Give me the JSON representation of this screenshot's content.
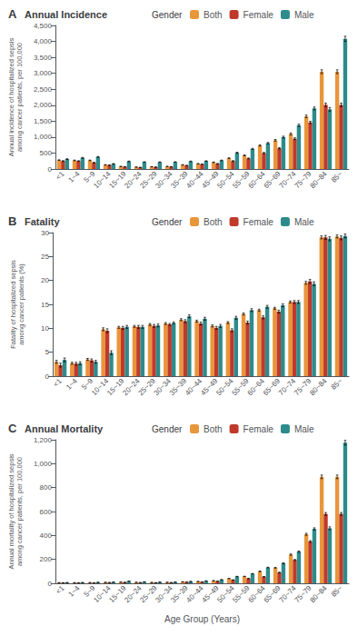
{
  "chart_data": [
    {
      "type": "bar",
      "panel_label": "A",
      "title": "Annual Incidence",
      "ylabel": "Annual incidence of hospitalized sepsis\namong cancer patients, per 100,000",
      "legend_title": "Gender",
      "legend": "upper left",
      "grid": false,
      "categories": [
        "<1",
        "1~4",
        "5~9",
        "10~14",
        "15~19",
        "20~24",
        "25~29",
        "30~34",
        "35~39",
        "40~44",
        "45~49",
        "50~54",
        "55~59",
        "60~64",
        "65~69",
        "70~74",
        "75~79",
        "80~84",
        "85~"
      ],
      "ylim": [
        0,
        4500
      ],
      "yticks": [
        0,
        500,
        1000,
        1500,
        2000,
        2500,
        3000,
        3500,
        4000,
        4500
      ],
      "series": [
        {
          "name": "Both",
          "color": "#E8963A",
          "values": [
            280,
            270,
            270,
            130,
            80,
            60,
            70,
            80,
            130,
            165,
            210,
            340,
            430,
            740,
            900,
            1100,
            1650,
            3050,
            3050
          ],
          "errors": [
            10,
            10,
            10,
            8,
            5,
            4,
            4,
            5,
            6,
            7,
            8,
            12,
            15,
            20,
            25,
            30,
            40,
            60,
            60
          ]
        },
        {
          "name": "Female",
          "color": "#C0392B",
          "values": [
            250,
            250,
            200,
            120,
            70,
            50,
            60,
            70,
            110,
            150,
            165,
            250,
            330,
            500,
            650,
            950,
            1460,
            2010,
            2010
          ],
          "errors": [
            12,
            10,
            10,
            9,
            5,
            4,
            4,
            5,
            6,
            7,
            8,
            12,
            14,
            18,
            22,
            28,
            35,
            55,
            55
          ]
        },
        {
          "name": "Male",
          "color": "#2E8B8B",
          "values": [
            310,
            350,
            380,
            160,
            240,
            220,
            215,
            220,
            240,
            250,
            270,
            510,
            630,
            810,
            1000,
            1370,
            1900,
            1870,
            4080
          ],
          "errors": [
            12,
            12,
            12,
            10,
            8,
            7,
            7,
            7,
            8,
            8,
            9,
            15,
            18,
            22,
            28,
            35,
            45,
            55,
            80
          ]
        }
      ]
    },
    {
      "type": "bar",
      "panel_label": "B",
      "title": "Fatality",
      "ylabel": "Fatality of hospitalized sepsis\namong cancer patients (%)",
      "legend_title": "Gender",
      "legend": "upper left",
      "grid": false,
      "categories": [
        "<1",
        "1~4",
        "5~9",
        "10~14",
        "15~19",
        "20~24",
        "25~29",
        "30~34",
        "35~39",
        "40~44",
        "45~49",
        "50~54",
        "55~59",
        "60~64",
        "65~69",
        "70~74",
        "75~79",
        "80~84",
        "85~"
      ],
      "ylim": [
        0,
        30
      ],
      "yticks": [
        0,
        5,
        10,
        15,
        20,
        25,
        30
      ],
      "series": [
        {
          "name": "Both",
          "color": "#E8963A",
          "values": [
            3.0,
            2.7,
            3.5,
            9.8,
            10.2,
            10.4,
            10.8,
            11.0,
            11.8,
            11.5,
            10.5,
            11.2,
            13.0,
            13.8,
            14.2,
            15.5,
            19.5,
            29.0,
            29.2
          ],
          "errors": [
            0.3,
            0.2,
            0.2,
            0.3,
            0.2,
            0.2,
            0.2,
            0.2,
            0.2,
            0.2,
            0.2,
            0.2,
            0.2,
            0.2,
            0.2,
            0.2,
            0.3,
            0.3,
            0.3
          ]
        },
        {
          "name": "Female",
          "color": "#C0392B",
          "values": [
            2.3,
            2.6,
            3.3,
            9.5,
            10.1,
            10.3,
            10.5,
            10.8,
            11.5,
            11.0,
            10.1,
            9.6,
            11.2,
            12.3,
            13.5,
            15.5,
            19.8,
            29.0,
            28.9
          ],
          "errors": [
            0.4,
            0.3,
            0.3,
            0.4,
            0.3,
            0.3,
            0.3,
            0.2,
            0.3,
            0.3,
            0.3,
            0.3,
            0.3,
            0.3,
            0.3,
            0.3,
            0.4,
            0.4,
            0.4
          ]
        },
        {
          "name": "Male",
          "color": "#2E8B8B",
          "values": [
            3.4,
            2.7,
            3.0,
            4.9,
            10.3,
            10.3,
            10.6,
            11.1,
            12.5,
            12.0,
            10.5,
            12.2,
            13.8,
            14.5,
            14.8,
            15.5,
            19.3,
            28.7,
            29.3
          ],
          "errors": [
            0.4,
            0.3,
            0.3,
            0.4,
            0.3,
            0.3,
            0.3,
            0.2,
            0.3,
            0.3,
            0.3,
            0.3,
            0.3,
            0.3,
            0.3,
            0.3,
            0.4,
            0.4,
            0.4
          ]
        }
      ]
    },
    {
      "type": "bar",
      "panel_label": "C",
      "title": "Annual Mortality",
      "ylabel": "Annual mortality of hospitalized sepsis\namong cancer patients, per 100,000",
      "xlabel": "Age Group (Years)",
      "legend_title": "Gender",
      "legend": "upper left",
      "grid": false,
      "categories": [
        "<1",
        "1~4",
        "5~9",
        "10~14",
        "15~19",
        "20~24",
        "25~29",
        "30~34",
        "35~39",
        "40~44",
        "45~49",
        "50~54",
        "55~59",
        "60~64",
        "65~69",
        "70~74",
        "75~79",
        "80~84",
        "85~"
      ],
      "ylim": [
        0,
        1200
      ],
      "yticks": [
        0,
        200,
        400,
        600,
        800,
        1000,
        1200
      ],
      "series": [
        {
          "name": "Both",
          "color": "#E8963A",
          "values": [
            5,
            5,
            6,
            8,
            10,
            8,
            7,
            8,
            12,
            15,
            22,
            40,
            58,
            100,
            130,
            240,
            410,
            890,
            890
          ],
          "errors": [
            0.5,
            0.5,
            0.5,
            0.5,
            0.6,
            0.5,
            0.4,
            0.4,
            0.5,
            0.7,
            0.8,
            1.2,
            1.5,
            2.5,
            3.0,
            5,
            8,
            15,
            15
          ]
        },
        {
          "name": "Female",
          "color": "#C0392B",
          "values": [
            4,
            4,
            4,
            6,
            8,
            6,
            5,
            6,
            10,
            12,
            17,
            28,
            40,
            55,
            90,
            195,
            350,
            580,
            580
          ],
          "errors": [
            0.5,
            0.5,
            0.5,
            0.6,
            0.7,
            0.5,
            0.4,
            0.4,
            0.6,
            0.7,
            0.8,
            1.2,
            1.4,
            2.2,
            2.8,
            4.5,
            7,
            12,
            12
          ]
        },
        {
          "name": "Male",
          "color": "#2E8B8B",
          "values": [
            6,
            6,
            8,
            10,
            18,
            12,
            10,
            10,
            15,
            20,
            30,
            57,
            80,
            132,
            168,
            265,
            455,
            460,
            1175
          ],
          "errors": [
            0.6,
            0.6,
            0.6,
            0.7,
            0.8,
            0.6,
            0.5,
            0.5,
            0.7,
            0.8,
            0.9,
            1.5,
            1.8,
            2.8,
            3.5,
            5.5,
            9,
            12,
            20
          ]
        }
      ]
    }
  ]
}
